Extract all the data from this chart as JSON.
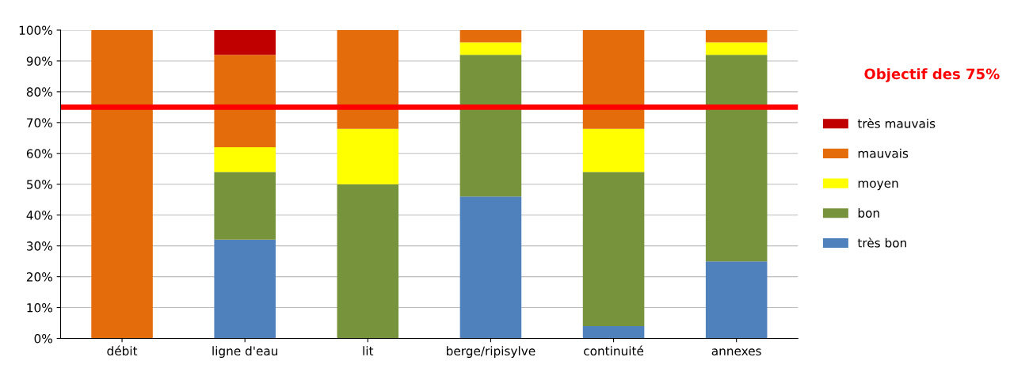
{
  "chart_data": {
    "type": "bar",
    "stacked": true,
    "categories": [
      "débit",
      "ligne d'eau",
      "lit",
      "berge/ripisylve",
      "continuité",
      "annexes"
    ],
    "series": [
      {
        "name": "très bon",
        "color": "#4f81bd",
        "values": [
          0,
          32,
          0,
          46,
          4,
          25
        ]
      },
      {
        "name": "bon",
        "color": "#77933c",
        "values": [
          0,
          22,
          50,
          46,
          50,
          67
        ]
      },
      {
        "name": "moyen",
        "color": "#ffff00",
        "values": [
          0,
          8,
          18,
          4,
          14,
          4
        ]
      },
      {
        "name": "mauvais",
        "color": "#e46c0a",
        "values": [
          100,
          30,
          32,
          4,
          32,
          4
        ]
      },
      {
        "name": "très mauvais",
        "color": "#c00000",
        "values": [
          0,
          8,
          0,
          0,
          0,
          0
        ]
      }
    ],
    "ylim": [
      0,
      100
    ],
    "yticks": [
      {
        "value": 0,
        "label": "0%"
      },
      {
        "value": 10,
        "label": "10%"
      },
      {
        "value": 20,
        "label": "20%"
      },
      {
        "value": 30,
        "label": "30%"
      },
      {
        "value": 40,
        "label": "40%"
      },
      {
        "value": 50,
        "label": "50%"
      },
      {
        "value": 60,
        "label": "60%"
      },
      {
        "value": 70,
        "label": "70%"
      },
      {
        "value": 80,
        "label": "80%"
      },
      {
        "value": 90,
        "label": "90%"
      },
      {
        "value": 100,
        "label": "100%"
      }
    ],
    "grid": "y",
    "legend": "right",
    "ref_lines": [
      {
        "axis": "y",
        "value": 75,
        "label": "Objectif des 75%",
        "color": "#ff0000"
      }
    ]
  }
}
